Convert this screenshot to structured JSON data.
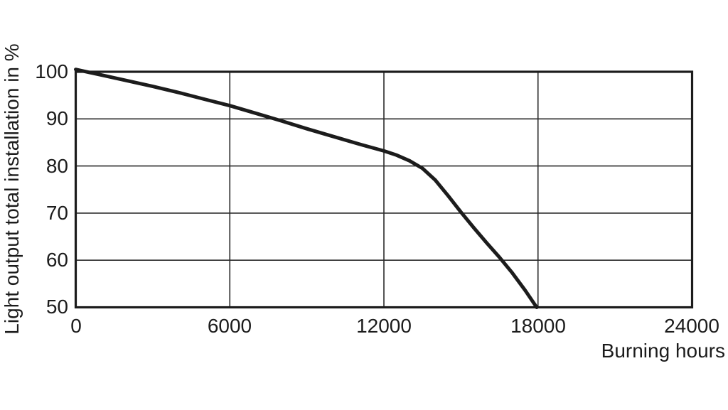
{
  "page": {
    "background_color": "#ffffff",
    "ink_color": "#1c1c1c"
  },
  "chart_data": {
    "type": "line",
    "title": "",
    "xlabel": "Burning hours",
    "ylabel": "Light output total installation in %",
    "xlim": [
      0,
      24000
    ],
    "ylim": [
      50,
      100
    ],
    "xticks": [
      0,
      6000,
      12000,
      18000,
      24000
    ],
    "yticks": [
      100,
      90,
      80,
      70,
      60,
      50
    ],
    "xtick_labels": [
      "0",
      "6000",
      "12000",
      "18000",
      "24000"
    ],
    "ytick_labels": [
      "100",
      "90",
      "80",
      "70",
      "60",
      "50"
    ],
    "grid": true,
    "legend": false,
    "line_color": "#1c1c1c",
    "grid_color": "#2a2a2a",
    "frame_color": "#1c1c1c",
    "series": [
      {
        "name": "",
        "points": [
          [
            0,
            100.5
          ],
          [
            1000,
            99.3
          ],
          [
            2000,
            98.1
          ],
          [
            3000,
            96.9
          ],
          [
            4000,
            95.6
          ],
          [
            5000,
            94.2
          ],
          [
            6000,
            92.8
          ],
          [
            7000,
            91.2
          ],
          [
            8000,
            89.6
          ],
          [
            9000,
            87.9
          ],
          [
            10000,
            86.3
          ],
          [
            11000,
            84.7
          ],
          [
            12000,
            83.2
          ],
          [
            12500,
            82.3
          ],
          [
            13000,
            81.1
          ],
          [
            13500,
            79.5
          ],
          [
            14000,
            77.0
          ],
          [
            14500,
            73.7
          ],
          [
            15000,
            70.2
          ],
          [
            15500,
            66.9
          ],
          [
            16000,
            63.7
          ],
          [
            16500,
            60.6
          ],
          [
            17000,
            57.3
          ],
          [
            17500,
            53.6
          ],
          [
            17950,
            50.0
          ]
        ]
      }
    ],
    "annotations": {
      "readings": {
        "at_6000h": 93,
        "at_12000h": 83,
        "pct80_at_hours": 13400,
        "pct70_at_hours": 15000,
        "pct60_at_hours": 16600,
        "pct50_at_hours": 17950
      }
    }
  }
}
